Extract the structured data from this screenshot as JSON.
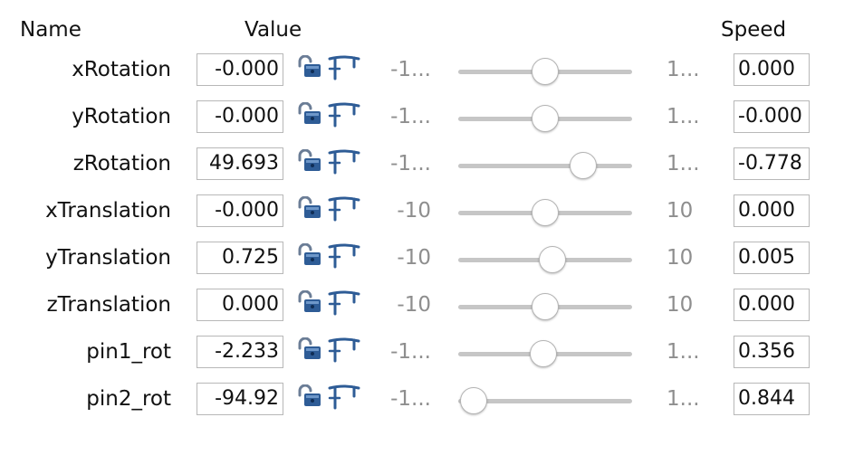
{
  "headers": {
    "name": "Name",
    "value": "Value",
    "speed": "Speed"
  },
  "rows": [
    {
      "name": "xRotation",
      "value": "-0.000",
      "min": "-1...",
      "max": "1...",
      "speed": "0.000",
      "slider_fraction": 0.5
    },
    {
      "name": "yRotation",
      "value": "-0.000",
      "min": "-1...",
      "max": "1...",
      "speed": "-0.000",
      "slider_fraction": 0.5
    },
    {
      "name": "zRotation",
      "value": "49.693",
      "min": "-1...",
      "max": "1...",
      "speed": "-0.778",
      "slider_fraction": 0.72
    },
    {
      "name": "xTranslation",
      "value": "-0.000",
      "min": "-10",
      "max": "10",
      "speed": "0.000",
      "slider_fraction": 0.5
    },
    {
      "name": "yTranslation",
      "value": "0.725",
      "min": "-10",
      "max": "10",
      "speed": "0.005",
      "slider_fraction": 0.54
    },
    {
      "name": "zTranslation",
      "value": "0.000",
      "min": "-10",
      "max": "10",
      "speed": "0.000",
      "slider_fraction": 0.5
    },
    {
      "name": "pin1_rot",
      "value": "-2.233",
      "min": "-1...",
      "max": "1...",
      "speed": "0.356",
      "slider_fraction": 0.49
    },
    {
      "name": "pin2_rot",
      "value": "-94.92",
      "min": "-1...",
      "max": "1...",
      "speed": "0.844",
      "slider_fraction": 0.09
    }
  ],
  "icons": {
    "lock": "unlocked-padlock-icon",
    "pin": "pin-range-icon"
  },
  "colors": {
    "lock_blue": "#2e5c96",
    "range_muted": "#8e8e8e",
    "track": "#c6c6c6"
  }
}
